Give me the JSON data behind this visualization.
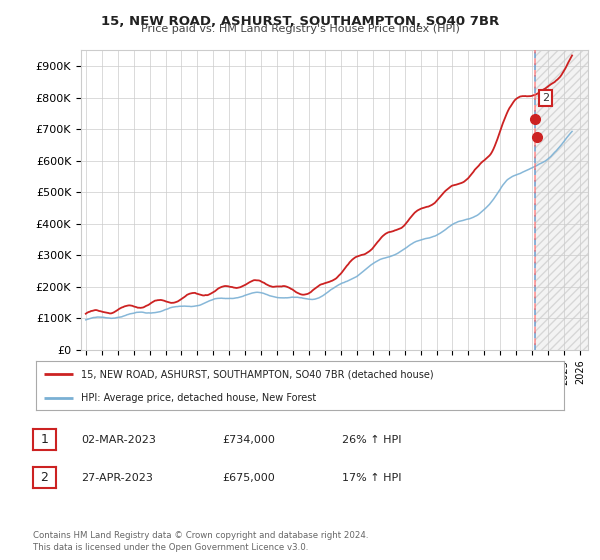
{
  "title": "15, NEW ROAD, ASHURST, SOUTHAMPTON, SO40 7BR",
  "subtitle": "Price paid vs. HM Land Registry's House Price Index (HPI)",
  "ylabel_ticks": [
    "£0",
    "£100K",
    "£200K",
    "£300K",
    "£400K",
    "£500K",
    "£600K",
    "£700K",
    "£800K",
    "£900K"
  ],
  "ytick_values": [
    0,
    100000,
    200000,
    300000,
    400000,
    500000,
    600000,
    700000,
    800000,
    900000
  ],
  "ylim": [
    0,
    950000
  ],
  "xlim_start": 1994.7,
  "xlim_end": 2026.5,
  "hpi_color": "#7ab0d4",
  "price_color": "#cc2222",
  "vline_color_blue": "#6699cc",
  "vline_color_red": "#ff6666",
  "marker_color": "#cc2222",
  "marker2_x": 2023.33,
  "marker2_y": 675000,
  "marker1_x": 2023.17,
  "marker1_y": 734000,
  "vline_x": 2023.17,
  "legend_label1": "15, NEW ROAD, ASHURST, SOUTHAMPTON, SO40 7BR (detached house)",
  "legend_label2": "HPI: Average price, detached house, New Forest",
  "table_rows": [
    {
      "num": "1",
      "date": "02-MAR-2023",
      "price": "£734,000",
      "change": "26% ↑ HPI"
    },
    {
      "num": "2",
      "date": "27-APR-2023",
      "price": "£675,000",
      "change": "17% ↑ HPI"
    }
  ],
  "footer": "Contains HM Land Registry data © Crown copyright and database right 2024.\nThis data is licensed under the Open Government Licence v3.0.",
  "background_color": "#ffffff",
  "grid_color": "#cccccc"
}
